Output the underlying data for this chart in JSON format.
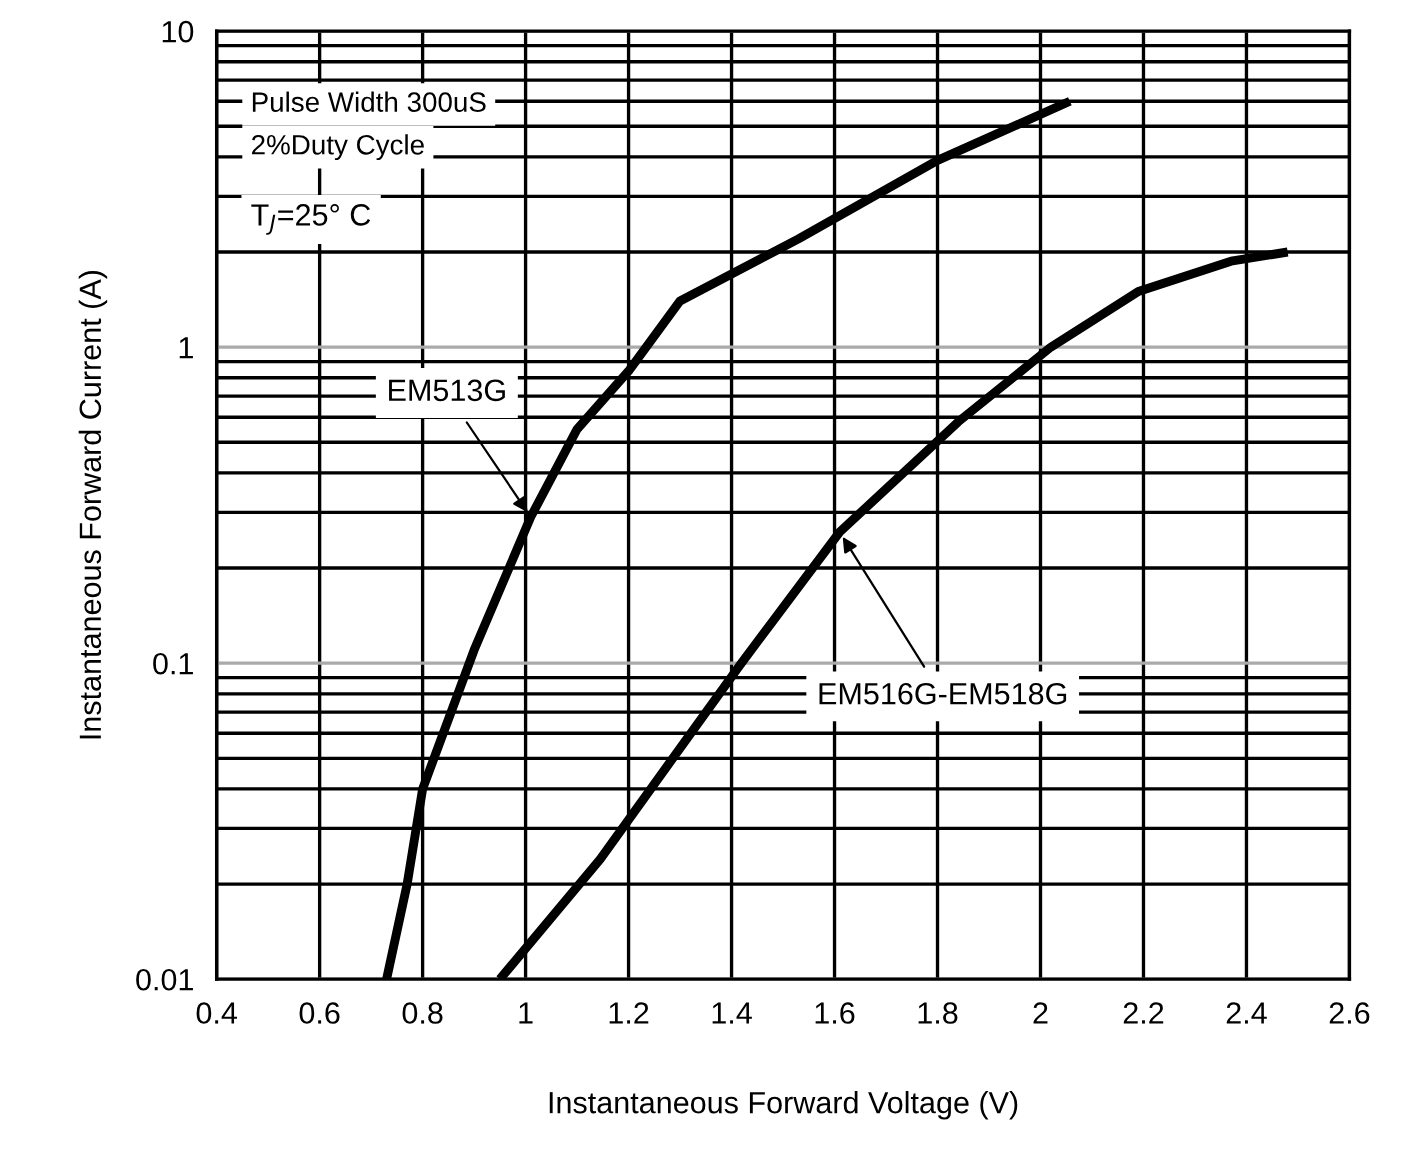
{
  "chart_data": {
    "type": "line",
    "xlabel": "Instantaneous Forward Voltage (V)",
    "ylabel": "Instantaneous Forward Current (A)",
    "log": "y",
    "xlim": [
      0.4,
      2.6
    ],
    "ylim": [
      0.01,
      10
    ],
    "xticks": [
      0.4,
      0.6,
      0.8,
      1,
      1.2,
      1.4,
      1.6,
      1.8,
      2,
      2.2,
      2.4,
      2.6
    ],
    "yticks": [
      0.01,
      0.1,
      1,
      10
    ],
    "grid": true,
    "legend": false,
    "line_style": "solid",
    "marker": "none",
    "annotations": [
      "Pulse Width 300uS",
      "2%Duty Cycle",
      "T$_{J}$=25° C"
    ],
    "series": [
      {
        "name": "EM513G",
        "color": "#000000",
        "x": [
          0.73,
          0.77,
          0.8,
          0.9,
          1.01,
          1.1,
          1.2,
          1.3,
          1.53,
          1.8,
          2.057
        ],
        "values": [
          0.01,
          0.02,
          0.04,
          0.11,
          0.29,
          0.55,
          0.84,
          1.4,
          2.2,
          3.9,
          6.0
        ]
      },
      {
        "name": "EM516G-EM518G",
        "color": "#000000",
        "x": [
          0.95,
          1.145,
          1.417,
          1.61,
          1.84,
          2.02,
          2.19,
          2.37,
          2.48
        ],
        "values": [
          0.01,
          0.024,
          0.099,
          0.26,
          0.58,
          1.0,
          1.5,
          1.87,
          2.0
        ]
      }
    ]
  }
}
